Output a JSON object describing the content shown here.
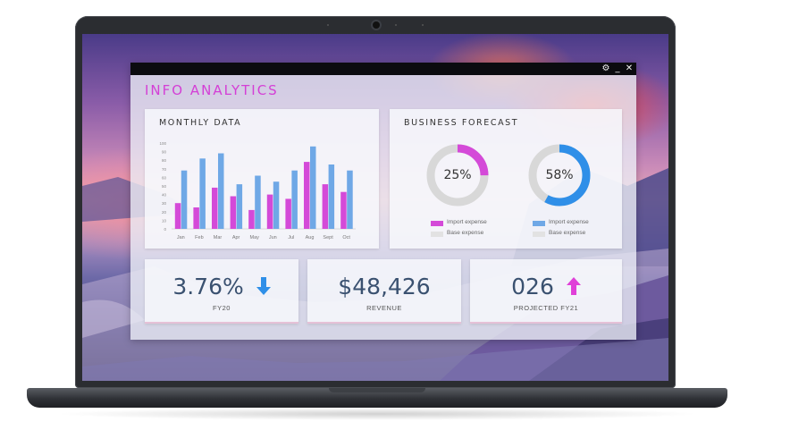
{
  "window": {
    "title": "INFO ANALYTICS",
    "controls": {
      "settings": "⚙",
      "minimize": "_",
      "close": "✕"
    }
  },
  "monthly": {
    "title": "MONTHLY DATA",
    "colors": {
      "pink": "#d44ad8",
      "blue": "#6fa8e6"
    }
  },
  "forecast": {
    "title": "BUSINESS FORECAST",
    "donut1": {
      "percent": 25,
      "label": "25%",
      "color": "#d44ad8"
    },
    "donut2": {
      "percent": 58,
      "label": "58%",
      "color": "#2f8fe8"
    },
    "legend1": [
      {
        "text": "Import expense",
        "color": "#d44ad8"
      },
      {
        "text": "Base expense",
        "color": "#d8d8d8"
      }
    ],
    "legend2": [
      {
        "text": "Import expense",
        "color": "#6fa8e6"
      },
      {
        "text": "Base expense",
        "color": "#d8d8d8"
      }
    ]
  },
  "kpis": [
    {
      "value": "3.76%",
      "label": "FY20",
      "arrow": "down",
      "arrow_color": "#2f8fe8",
      "underline": "#e6c1d7"
    },
    {
      "value": "$48,426",
      "label": "REVENUE",
      "arrow": "",
      "underline": "#e6c1d7"
    },
    {
      "value": "026",
      "label": "PROJECTED FY21",
      "arrow": "up",
      "arrow_color": "#e040d8",
      "underline": "#e6c1d7"
    }
  ],
  "chart_data": {
    "type": "bar",
    "title": "MONTHLY DATA",
    "categories": [
      "Jan",
      "Feb",
      "Mar",
      "Apr",
      "May",
      "Jun",
      "Jul",
      "Aug",
      "Sept",
      "Oct"
    ],
    "yticks": [
      0,
      10,
      20,
      30,
      40,
      50,
      60,
      70,
      80,
      90,
      100
    ],
    "ylim": [
      0,
      100
    ],
    "series": [
      {
        "color": "#d44ad8",
        "values": [
          30,
          25,
          48,
          38,
          22,
          40,
          35,
          78,
          52,
          43
        ]
      },
      {
        "color": "#6fa8e6",
        "values": [
          68,
          82,
          88,
          52,
          62,
          55,
          68,
          96,
          75,
          68
        ]
      }
    ],
    "grid": false
  }
}
